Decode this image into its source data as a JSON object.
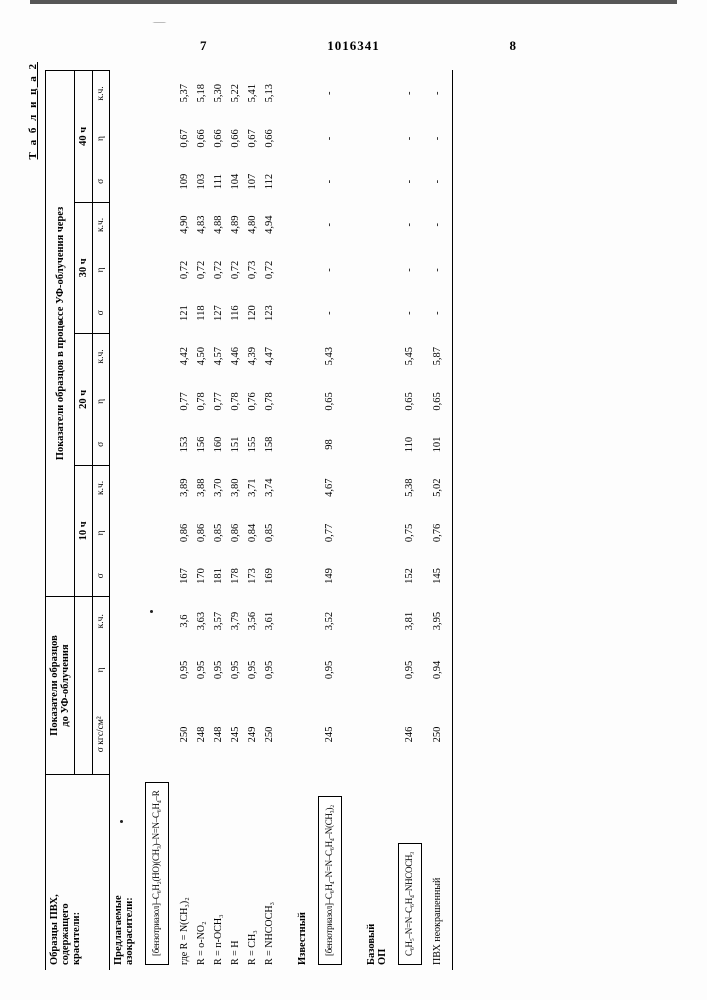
{
  "doc_number": "1016341",
  "page_left": "7",
  "page_right": "8",
  "table_name": "Т а б л и ц а  2",
  "head": {
    "col0": "Образцы ПВХ,\nсодержащего\nкрасители:",
    "group_a": "Показатели образцов\nдо УФ-облучения",
    "group_b": "Показатели образцов в процессе УФ-облучения через",
    "sub_b": [
      "10 ч",
      "20 ч",
      "30 ч",
      "40 ч"
    ],
    "metrics": [
      "σ кгс/см²",
      "η",
      "к.ч."
    ]
  },
  "sections": {
    "proposed": "Предлагаемые\nазокрасители:",
    "known": "Известный",
    "base": "Базовый\nОП",
    "pvx": "ПВХ неокрашенный"
  },
  "chem": {
    "proposed": "[бензотриазол]–C₆H₂(HO)(CH₃)–N=N–C₆H₄–R",
    "known": "[бензотриазол]–C₆H₄–N=N–C₆H₄–N(CH₃)₂",
    "base": "C₆H₅–N=N–C₆H₄–NHCOCH₃"
  },
  "rows": [
    {
      "label": "где  R = N(CH₃)₂",
      "v": [
        "250",
        "0,95",
        "3,6",
        "167",
        "0,86",
        "3,89",
        "153",
        "0,77",
        "4,42",
        "121",
        "0,72",
        "4,90",
        "109",
        "0,67",
        "5,37"
      ]
    },
    {
      "label": "R = о-NO₂",
      "v": [
        "248",
        "0,95",
        "3,63",
        "170",
        "0,86",
        "3,88",
        "156",
        "0,78",
        "4,50",
        "118",
        "0,72",
        "4,83",
        "103",
        "0,66",
        "5,18"
      ]
    },
    {
      "label": "R = п-OCH₃",
      "v": [
        "248",
        "0,95",
        "3,57",
        "181",
        "0,85",
        "3,70",
        "160",
        "0,77",
        "4,57",
        "127",
        "0,72",
        "4,88",
        "111",
        "0,66",
        "5,30"
      ]
    },
    {
      "label": "R = H",
      "v": [
        "245",
        "0,95",
        "3,79",
        "178",
        "0,86",
        "3,80",
        "151",
        "0,78",
        "4,46",
        "116",
        "0,72",
        "4,89",
        "104",
        "0,66",
        "5,22"
      ]
    },
    {
      "label": "R = CH₃",
      "v": [
        "249",
        "0,95",
        "3,56",
        "173",
        "0,84",
        "3,71",
        "155",
        "0,76",
        "4,39",
        "120",
        "0,73",
        "4,80",
        "107",
        "0,67",
        "5,41"
      ]
    },
    {
      "label": "R = NHCOCH₃",
      "v": [
        "250",
        "0,95",
        "3,61",
        "169",
        "0,85",
        "3,74",
        "158",
        "0,78",
        "4,47",
        "123",
        "0,72",
        "4,94",
        "112",
        "0,66",
        "5,13"
      ]
    }
  ],
  "known_row": {
    "v": [
      "245",
      "0,95",
      "3,52",
      "149",
      "0,77",
      "4,67",
      "98",
      "0,65",
      "5,43",
      "-",
      "-",
      "-",
      "-",
      "-",
      "-"
    ]
  },
  "base_row": {
    "v": [
      "246",
      "0,95",
      "3,81",
      "152",
      "0,75",
      "5,38",
      "110",
      "0,65",
      "5,45",
      "-",
      "-",
      "-",
      "-",
      "-",
      "-"
    ]
  },
  "pvx_row": {
    "v": [
      "250",
      "0,94",
      "3,95",
      "145",
      "0,76",
      "5,02",
      "101",
      "0,65",
      "5,87",
      "-",
      "-",
      "-",
      "-",
      "-",
      "-"
    ]
  }
}
